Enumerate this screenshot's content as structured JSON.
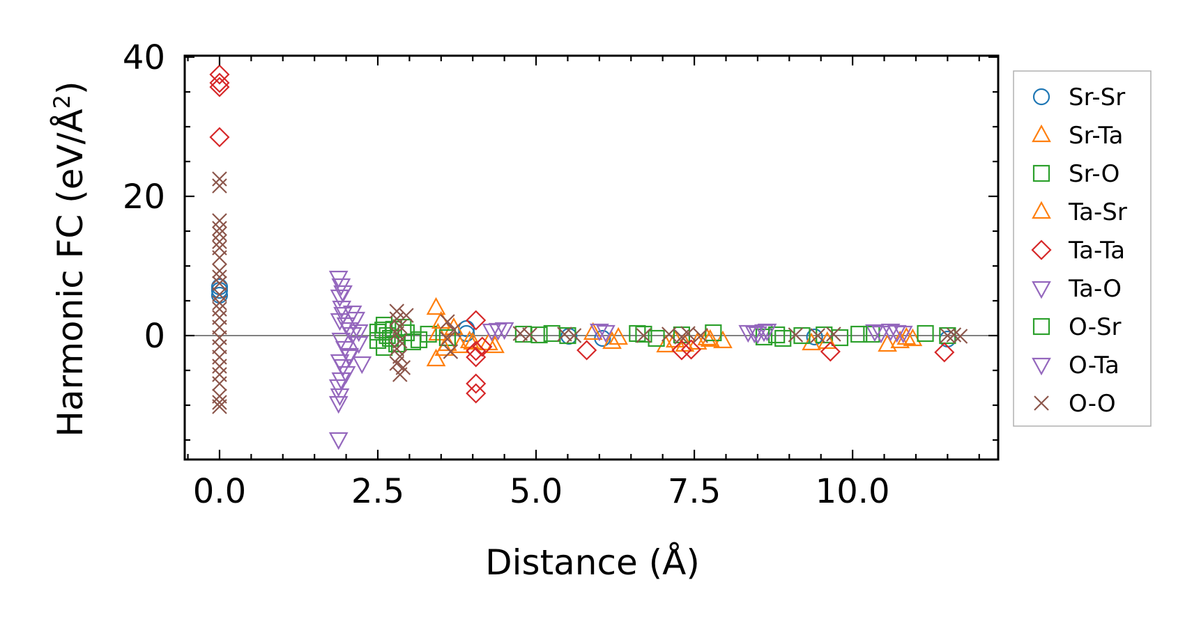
{
  "chart_data": {
    "type": "scatter",
    "title": "",
    "xlabel": "Distance (Å)",
    "ylabel_main": "Harmonic FC (eV/Å",
    "ylabel_sup": "2",
    "ylabel_close": ")",
    "xlim": [
      -0.55,
      12.3
    ],
    "ylim": [
      -17.8,
      40.2
    ],
    "xticks": [
      0,
      2.5,
      5,
      7.5,
      10
    ],
    "xtick_labels": [
      "0.0",
      "2.5",
      "5.0",
      "7.5",
      "10.0"
    ],
    "yticks": [
      0,
      20,
      40
    ],
    "ytick_labels": [
      "0",
      "20",
      "40"
    ],
    "zero_line": true,
    "legend_position": "outside-right",
    "series": [
      {
        "name": "Sr-Sr",
        "marker": "circle",
        "color": "#1f77b4",
        "points": [
          [
            0,
            6.5
          ],
          [
            0,
            5.8
          ],
          [
            0,
            7.0
          ],
          [
            3.9,
            1.0
          ],
          [
            3.9,
            0.3
          ],
          [
            5.52,
            -0.1
          ],
          [
            6.05,
            -0.4
          ],
          [
            9.4,
            -0.2
          ],
          [
            11.5,
            -0.5
          ]
        ]
      },
      {
        "name": "Sr-Ta",
        "marker": "triangle-up",
        "color": "#ff7f0e",
        "points": [
          [
            3.42,
            4.0
          ],
          [
            3.42,
            -3.4
          ],
          [
            3.45,
            0.3
          ],
          [
            3.6,
            -1.2
          ],
          [
            3.7,
            1.1
          ],
          [
            3.8,
            -1.5
          ],
          [
            3.95,
            -0.8
          ],
          [
            4.25,
            -1.1
          ],
          [
            4.35,
            -1.5
          ],
          [
            5.9,
            0.4
          ],
          [
            6.2,
            -0.9
          ],
          [
            6.3,
            -0.3
          ],
          [
            7.05,
            -1.4
          ],
          [
            7.2,
            -0.7
          ],
          [
            7.55,
            -1.0
          ],
          [
            7.7,
            -0.4
          ],
          [
            7.95,
            -0.8
          ],
          [
            9.35,
            -1.1
          ],
          [
            10.55,
            -1.3
          ],
          [
            10.75,
            -0.8
          ],
          [
            10.95,
            -0.5
          ]
        ]
      },
      {
        "name": "Sr-O",
        "marker": "square",
        "color": "#2ca02c",
        "points": [
          [
            2.5,
            0.5
          ],
          [
            2.5,
            -0.7
          ],
          [
            2.6,
            1.5
          ],
          [
            2.6,
            -1.7
          ],
          [
            2.65,
            0.0
          ],
          [
            2.75,
            0.9
          ],
          [
            2.8,
            -1.2
          ],
          [
            2.95,
            0.4
          ],
          [
            3.15,
            -0.6
          ],
          [
            3.3,
            0.2
          ],
          [
            3.6,
            -0.3
          ],
          [
            4.8,
            0.2
          ],
          [
            5.05,
            0.1
          ],
          [
            5.5,
            0.0
          ],
          [
            6.6,
            0.3
          ],
          [
            6.9,
            -0.4
          ],
          [
            7.3,
            0.1
          ],
          [
            7.8,
            0.4
          ],
          [
            8.6,
            -0.2
          ],
          [
            8.9,
            -0.4
          ],
          [
            9.2,
            0.0
          ],
          [
            9.55,
            0.1
          ],
          [
            9.8,
            -0.3
          ],
          [
            10.3,
            0.2
          ],
          [
            11.15,
            0.3
          ],
          [
            11.5,
            0.0
          ]
        ]
      },
      {
        "name": "Ta-Sr",
        "marker": "triangle-up",
        "color": "#ff7f0e",
        "points": [
          [
            3.5,
            2.0
          ],
          [
            3.55,
            -1.9
          ],
          [
            4.0,
            -1.0
          ],
          [
            7.35,
            -1.3
          ],
          [
            7.75,
            -0.6
          ],
          [
            9.6,
            -0.9
          ],
          [
            10.85,
            -0.3
          ]
        ]
      },
      {
        "name": "Ta-Ta",
        "marker": "diamond",
        "color": "#d62728",
        "points": [
          [
            0,
            37.5
          ],
          [
            0,
            36.3
          ],
          [
            0,
            35.7
          ],
          [
            0,
            28.5
          ],
          [
            4.05,
            2.2
          ],
          [
            4.05,
            -2.2
          ],
          [
            4.05,
            -3.1
          ],
          [
            4.05,
            -6.9
          ],
          [
            4.05,
            -8.3
          ],
          [
            4.15,
            -1.6
          ],
          [
            5.8,
            -2.1
          ],
          [
            7.3,
            -2.1
          ],
          [
            7.45,
            -2.0
          ],
          [
            9.65,
            -2.3
          ],
          [
            11.45,
            -2.4
          ]
        ]
      },
      {
        "name": "Ta-O",
        "marker": "triangle-down",
        "color": "#9467bd",
        "points": [
          [
            1.88,
            8.3
          ],
          [
            1.92,
            7.2
          ],
          [
            1.9,
            5.6
          ],
          [
            1.93,
            4.0
          ],
          [
            1.95,
            3.1
          ],
          [
            1.9,
            2.2
          ],
          [
            2.0,
            1.6
          ],
          [
            2.05,
            0.9
          ],
          [
            2.1,
            0.2
          ],
          [
            1.92,
            -0.6
          ],
          [
            1.98,
            -1.8
          ],
          [
            2.05,
            -2.8
          ],
          [
            1.9,
            -3.7
          ],
          [
            1.95,
            -4.4
          ],
          [
            2.0,
            -5.4
          ],
          [
            1.92,
            -6.3
          ],
          [
            1.88,
            -7.3
          ],
          [
            1.9,
            -8.6
          ],
          [
            2.15,
            2.4
          ],
          [
            2.2,
            -1.1
          ],
          [
            2.25,
            -4.0
          ],
          [
            4.3,
            0.7
          ],
          [
            4.5,
            0.9
          ],
          [
            6.0,
            0.7
          ],
          [
            8.45,
            0.4
          ],
          [
            8.6,
            0.6
          ],
          [
            10.35,
            0.6
          ],
          [
            10.6,
            0.7
          ]
        ]
      },
      {
        "name": "O-Sr",
        "marker": "square",
        "color": "#2ca02c",
        "points": [
          [
            2.58,
            0.8
          ],
          [
            2.7,
            -0.4
          ],
          [
            2.9,
            1.2
          ],
          [
            3.05,
            -0.9
          ],
          [
            5.25,
            0.3
          ],
          [
            6.7,
            0.2
          ],
          [
            8.8,
            0.1
          ],
          [
            10.1,
            0.2
          ]
        ]
      },
      {
        "name": "O-Ta",
        "marker": "triangle-down",
        "color": "#9467bd",
        "points": [
          [
            1.88,
            -14.9
          ],
          [
            1.88,
            -9.7
          ],
          [
            1.95,
            6.2
          ],
          [
            2.05,
            -3.0
          ],
          [
            2.1,
            3.3
          ],
          [
            2.2,
            0.6
          ],
          [
            4.4,
            0.8
          ],
          [
            6.1,
            0.5
          ],
          [
            8.35,
            0.5
          ],
          [
            8.5,
            0.3
          ],
          [
            8.65,
            0.7
          ],
          [
            10.45,
            0.4
          ],
          [
            10.7,
            0.5
          ],
          [
            10.8,
            0.4
          ]
        ]
      },
      {
        "name": "O-O",
        "marker": "x",
        "color": "#8c564b",
        "points": [
          [
            0,
            22.5
          ],
          [
            0,
            21.5
          ],
          [
            0,
            16.5
          ],
          [
            0,
            15.4
          ],
          [
            0,
            14.6
          ],
          [
            0,
            13.5
          ],
          [
            0,
            12.6
          ],
          [
            0,
            11.2
          ],
          [
            0,
            9.3
          ],
          [
            0,
            8.4
          ],
          [
            0,
            7.5
          ],
          [
            0,
            5.9
          ],
          [
            0,
            4.7
          ],
          [
            0,
            3.8
          ],
          [
            0,
            2.6
          ],
          [
            0,
            1.2
          ],
          [
            0,
            -0.3
          ],
          [
            0,
            -1.6
          ],
          [
            0,
            -3.1
          ],
          [
            0,
            -4.4
          ],
          [
            0,
            -5.6
          ],
          [
            0,
            -6.9
          ],
          [
            0,
            -8.7
          ],
          [
            0,
            -9.6
          ],
          [
            0,
            -10.2
          ],
          [
            2.8,
            3.5
          ],
          [
            2.8,
            2.4
          ],
          [
            2.85,
            1.3
          ],
          [
            2.8,
            0.3
          ],
          [
            2.85,
            -0.8
          ],
          [
            2.8,
            -1.9
          ],
          [
            2.85,
            -3.0
          ],
          [
            2.8,
            -4.0
          ],
          [
            2.85,
            -5.6
          ],
          [
            2.9,
            -4.6
          ],
          [
            2.95,
            2.9
          ],
          [
            3.6,
            2.0
          ],
          [
            3.6,
            -0.5
          ],
          [
            3.65,
            -2.3
          ],
          [
            3.7,
            0.8
          ],
          [
            4.75,
            0.3
          ],
          [
            4.9,
            0.1
          ],
          [
            5.45,
            0.2
          ],
          [
            5.6,
            0.0
          ],
          [
            6.7,
            0.0
          ],
          [
            7.1,
            0.2
          ],
          [
            7.3,
            -0.2
          ],
          [
            7.4,
            0.3
          ],
          [
            7.6,
            0.0
          ],
          [
            9.1,
            0.1
          ],
          [
            9.45,
            0.0
          ],
          [
            9.7,
            0.2
          ],
          [
            11.5,
            0.0
          ],
          [
            11.6,
            0.1
          ],
          [
            11.7,
            -0.1
          ]
        ]
      }
    ]
  }
}
